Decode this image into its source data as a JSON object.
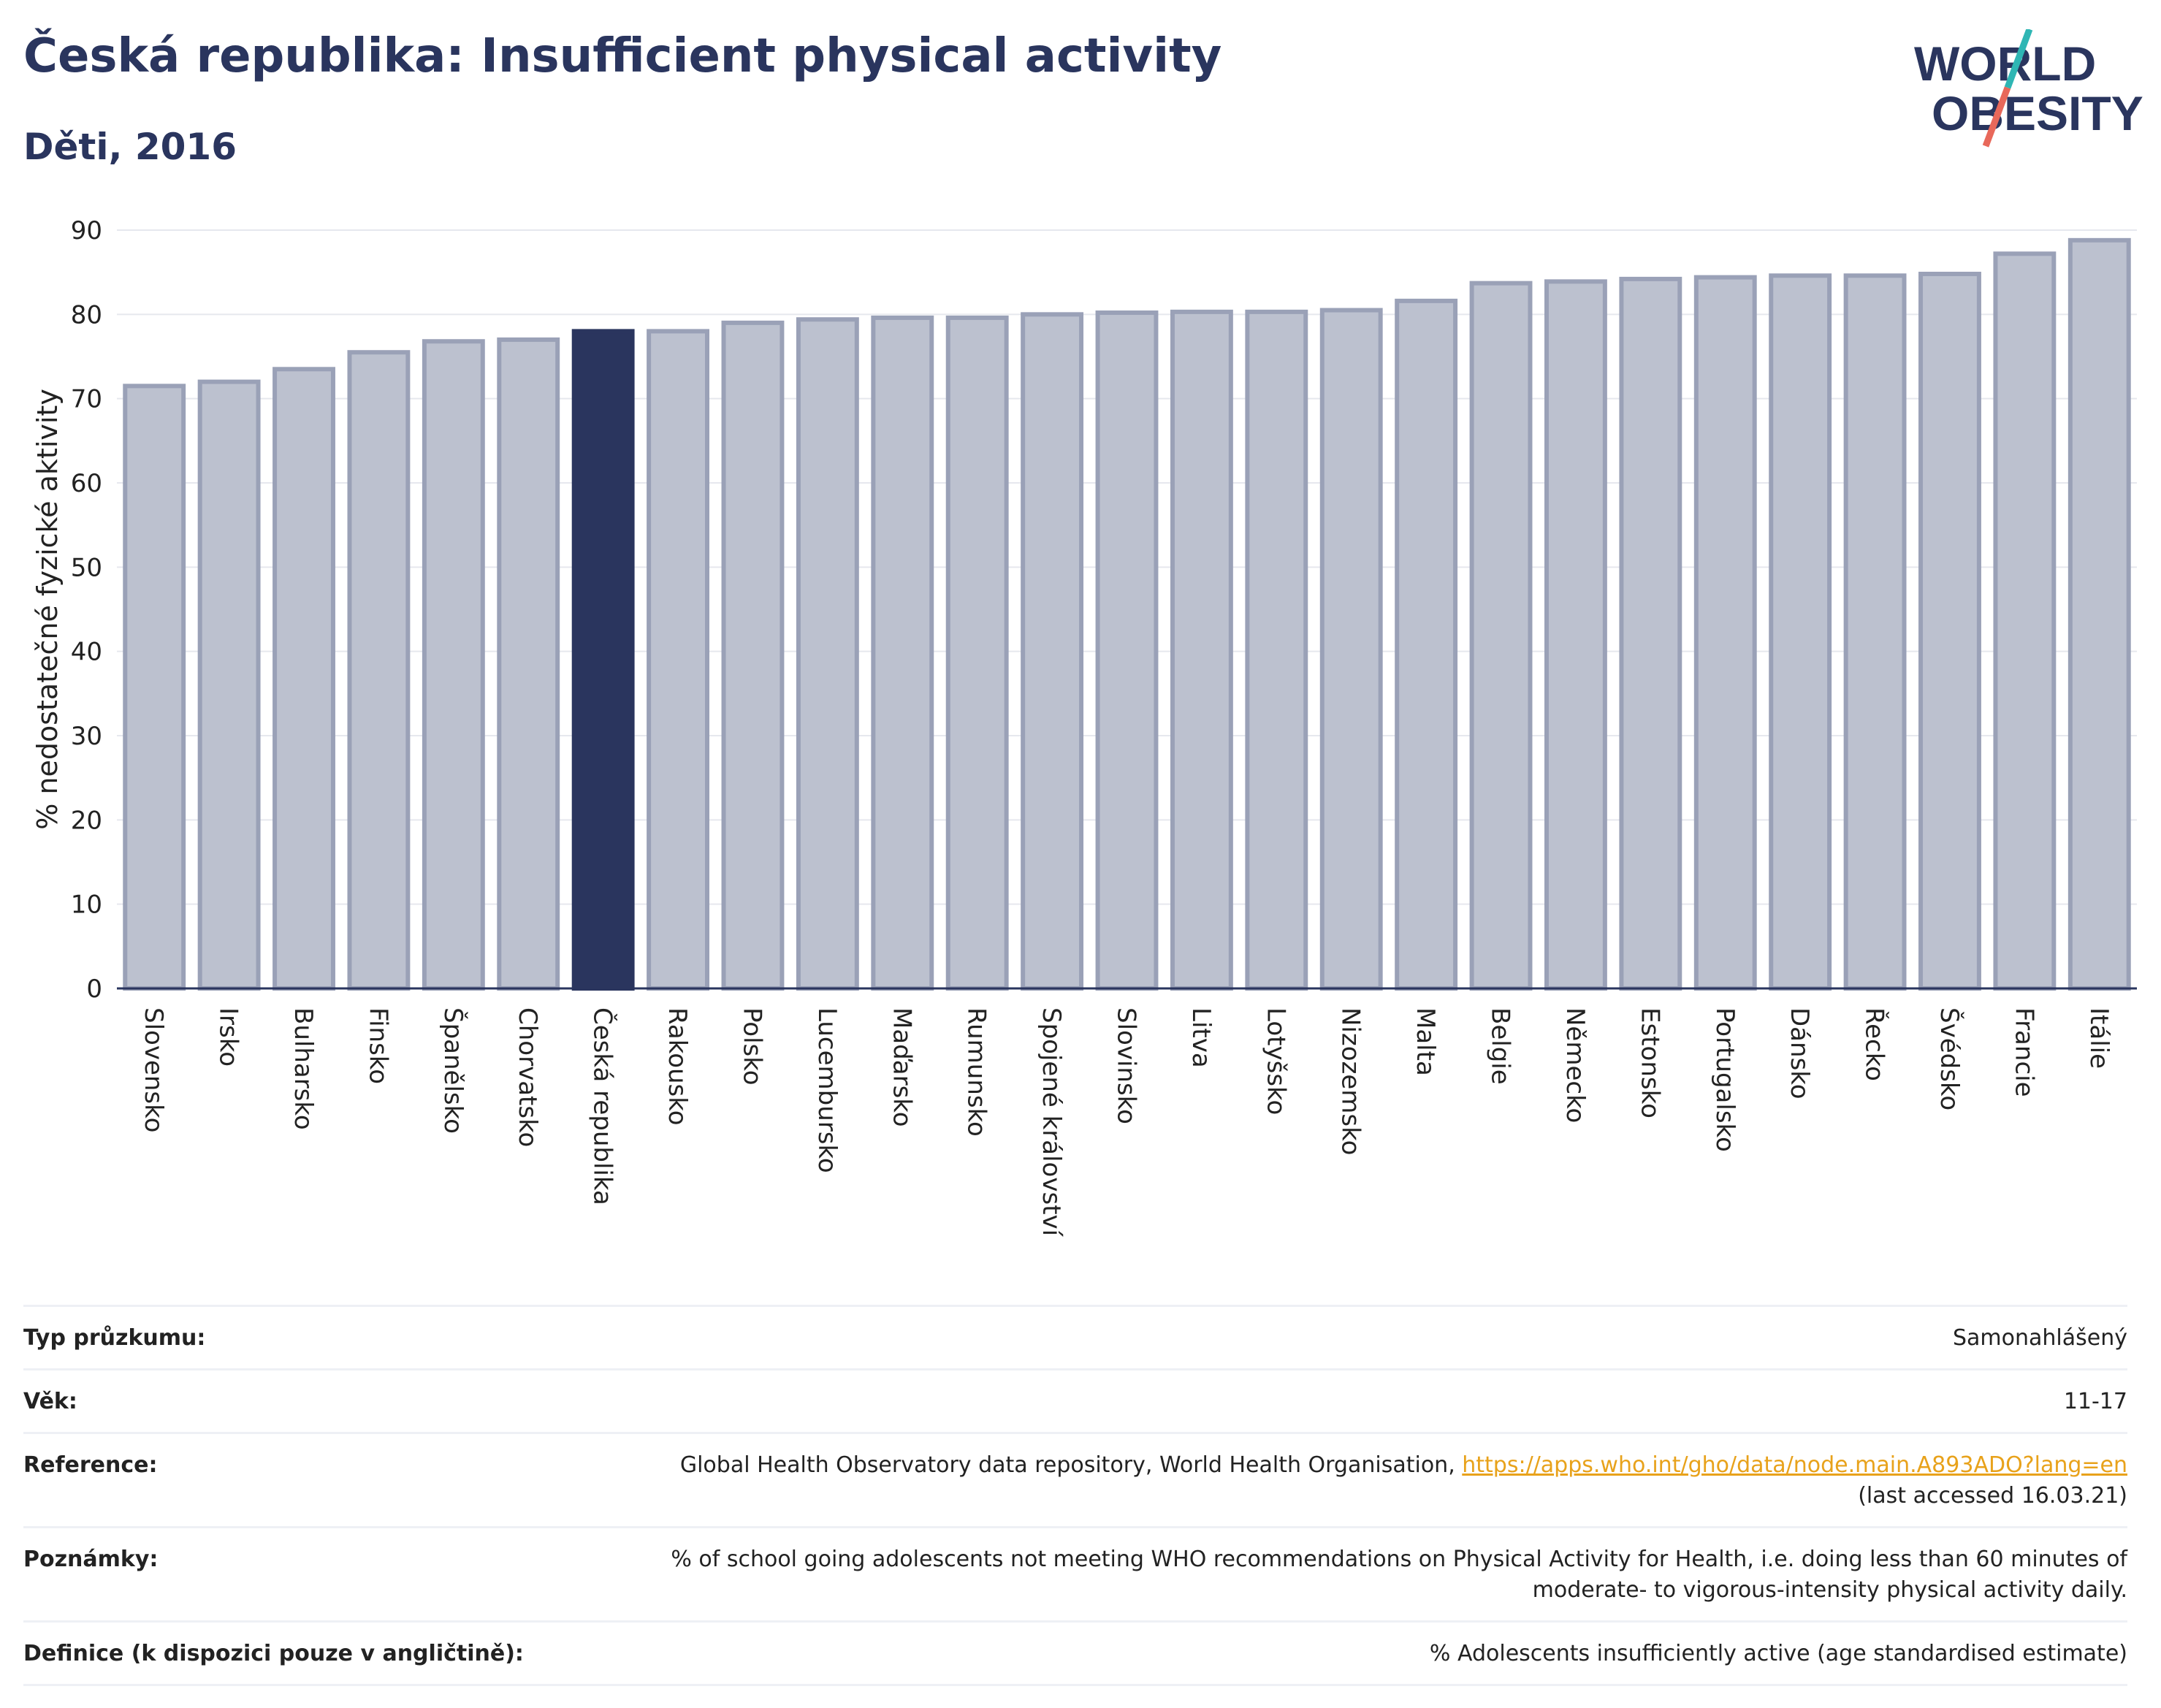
{
  "header": {
    "title": "Česká republika: Insufficient physical activity",
    "subtitle": "Děti, 2016"
  },
  "logo": {
    "line1": "WORLD",
    "line2": "OBESITY"
  },
  "colors": {
    "bar": "#bcc1cf",
    "bar_border": "#9aa1b7",
    "highlight": "#2a355e",
    "title": "#2a355e",
    "link": "#e8a21b"
  },
  "chart_data": {
    "type": "bar",
    "title": "Česká republika: Insufficient physical activity",
    "subtitle": "Děti, 2016",
    "xlabel": "",
    "ylabel": "% nedostatečné fyzické aktivity",
    "ylim": [
      0,
      90
    ],
    "yticks": [
      0,
      10,
      20,
      30,
      40,
      50,
      60,
      70,
      80,
      90
    ],
    "grid": true,
    "highlight": "Česká republika",
    "categories": [
      "Slovensko",
      "Irsko",
      "Bulharsko",
      "Finsko",
      "Španělsko",
      "Chorvatsko",
      "Česká republika",
      "Rakousko",
      "Polsko",
      "Lucembursko",
      "Maďarsko",
      "Rumunsko",
      "Spojené království",
      "Slovinsko",
      "Litva",
      "Lotyšsko",
      "Nizozemsko",
      "Malta",
      "Belgie",
      "Německo",
      "Estonsko",
      "Portugalsko",
      "Dánsko",
      "Řecko",
      "Švédsko",
      "Francie",
      "Itálie"
    ],
    "values": [
      71.5,
      72.0,
      73.5,
      75.5,
      76.8,
      77.0,
      78.0,
      78.0,
      79.0,
      79.4,
      79.6,
      79.6,
      80.0,
      80.2,
      80.3,
      80.3,
      80.5,
      81.6,
      83.7,
      83.9,
      84.2,
      84.4,
      84.6,
      84.6,
      84.8,
      87.2,
      88.8
    ]
  },
  "info": [
    {
      "label": "Typ průzkumu:",
      "value": "Samonahlášený"
    },
    {
      "label": "Věk:",
      "value": "11-17"
    },
    {
      "label": "Reference:",
      "value": "Global Health Observatory data repository, World Health Organisation, ",
      "link": "https://apps.who.int/gho/data/node.main.A893ADO?lang=en",
      "value2": "(last accessed 16.03.21)"
    },
    {
      "label": "Poznámky:",
      "value": "% of school going adolescents not meeting WHO recommendations on Physical Activity for Health, i.e. doing less than 60 minutes of",
      "value2": "moderate- to vigorous-intensity physical activity daily."
    },
    {
      "label": "Definice (k dispozici pouze v angličtině):",
      "value": "% Adolescents insufficiently active (age standardised estimate)"
    }
  ]
}
